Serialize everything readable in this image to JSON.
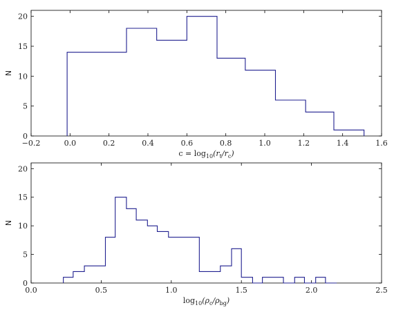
{
  "colors": {
    "step": "#1f1f8f",
    "axes": "#000000"
  },
  "chart_data": [
    {
      "type": "step-histogram",
      "ylabel": "N",
      "xlabel_parts": [
        "c = log",
        "10",
        "(r",
        "t",
        "/r",
        "c",
        ")"
      ],
      "xlim": [
        -0.2,
        1.6
      ],
      "ylim": [
        0,
        21
      ],
      "xticks": [
        -0.2,
        0.0,
        0.2,
        0.4,
        0.6,
        0.8,
        1.0,
        1.2,
        1.4,
        1.6
      ],
      "xtick_labels": [
        "−0.2",
        "0.0",
        "0.2",
        "0.4",
        "0.6",
        "0.8",
        "1.0",
        "1.2",
        "1.4",
        "1.6"
      ],
      "yticks": [
        0,
        5,
        10,
        15,
        20
      ],
      "ytick_labels": [
        "0",
        "5",
        "10",
        "15",
        "20"
      ],
      "bin_edges": [
        -0.015,
        0.135,
        0.29,
        0.445,
        0.6,
        0.755,
        0.9,
        1.055,
        1.21,
        1.355,
        1.51
      ],
      "counts": [
        14,
        14,
        18,
        16,
        20,
        13,
        11,
        6,
        4,
        1
      ]
    },
    {
      "type": "step-histogram",
      "ylabel": "N",
      "xlabel_parts": [
        "log",
        "10",
        "(ρ",
        "c",
        "/ρ",
        "bg",
        ")"
      ],
      "xlim": [
        0.0,
        2.5
      ],
      "ylim": [
        0,
        21
      ],
      "xticks": [
        0.0,
        0.5,
        1.0,
        1.5,
        2.0,
        2.5
      ],
      "xtick_labels": [
        "0.0",
        "0.5",
        "1.0",
        "1.5",
        "2.0",
        "2.5"
      ],
      "yticks": [
        0,
        5,
        10,
        15,
        20
      ],
      "ytick_labels": [
        "0",
        "5",
        "10",
        "15",
        "20"
      ],
      "bin_edges": [
        0.23,
        0.3,
        0.38,
        0.45,
        0.53,
        0.6,
        0.68,
        0.75,
        0.83,
        0.9,
        0.98,
        1.05,
        1.13,
        1.2,
        1.28,
        1.35,
        1.43,
        1.5,
        1.58,
        1.65,
        1.73,
        1.8,
        1.88,
        1.95,
        2.03,
        2.1,
        2.18
      ],
      "counts": [
        1,
        2,
        3,
        3,
        8,
        15,
        13,
        11,
        10,
        9,
        8,
        8,
        8,
        2,
        2,
        3,
        6,
        1,
        0,
        1,
        1,
        0,
        1,
        0,
        1,
        0
      ]
    }
  ]
}
